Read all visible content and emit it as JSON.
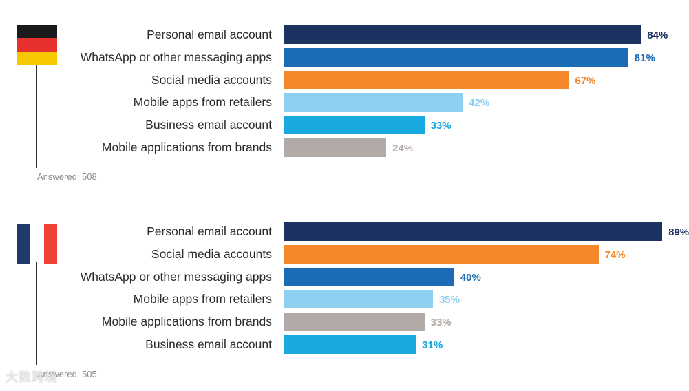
{
  "chart_data": [
    {
      "type": "bar",
      "orientation": "horizontal",
      "country_flag": "germany-flag-icon",
      "categories": [
        "Personal email account",
        "WhatsApp or other messaging apps",
        "Social media accounts",
        "Mobile apps from retailers",
        "Business email account",
        "Mobile applications from brands"
      ],
      "values": [
        84,
        81,
        67,
        42,
        33,
        24
      ],
      "value_labels": [
        "84%",
        "81%",
        "67%",
        "42%",
        "33%",
        "24%"
      ],
      "colors": [
        "#1c3260",
        "#1c6bb5",
        "#f4882a",
        "#8dcfee",
        "#17a9e0",
        "#b2aaa6"
      ],
      "label_colors": [
        "#1c3260",
        "#1c6bb5",
        "#f4882a",
        "#8dcfee",
        "#17a9e0",
        "#b2aaa6"
      ],
      "xlim": [
        0,
        100
      ],
      "footnote": "Answered: 508",
      "title": "",
      "xlabel": "",
      "ylabel": ""
    },
    {
      "type": "bar",
      "orientation": "horizontal",
      "country_flag": "france-flag-icon",
      "categories": [
        "Personal email account",
        "Social media accounts",
        "WhatsApp or other messaging apps",
        "Mobile apps from retailers",
        "Mobile applications from brands",
        "Business email account"
      ],
      "values": [
        89,
        74,
        40,
        35,
        33,
        31
      ],
      "value_labels": [
        "89%",
        "74%",
        "40%",
        "35%",
        "33%",
        "31%"
      ],
      "colors": [
        "#1c3260",
        "#f4882a",
        "#1c6bb5",
        "#8dcfee",
        "#b2aaa6",
        "#17a9e0"
      ],
      "label_colors": [
        "#1c3260",
        "#f4882a",
        "#1c6bb5",
        "#8dcfee",
        "#b2aaa6",
        "#17a9e0"
      ],
      "xlim": [
        0,
        100
      ],
      "footnote": "Answered: 505",
      "title": "",
      "xlabel": "",
      "ylabel": ""
    }
  ],
  "flag_colors": {
    "germany": [
      "#1a1a1a",
      "#e8312f",
      "#f7c800"
    ],
    "france": [
      "#1f3a6b",
      "#ffffff",
      "#ef4136"
    ]
  },
  "watermark": "大数跨境"
}
